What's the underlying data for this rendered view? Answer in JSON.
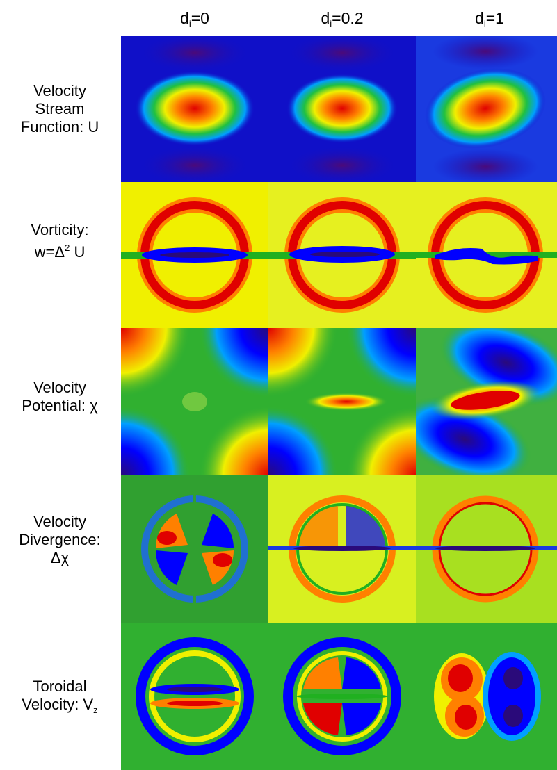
{
  "columns": [
    {
      "prefix": "d",
      "sub": "i",
      "suffix": "=0"
    },
    {
      "prefix": "d",
      "sub": "i",
      "suffix": "=0.2"
    },
    {
      "prefix": "d",
      "sub": "i",
      "suffix": "=1"
    }
  ],
  "rows": [
    {
      "lines": [
        "Velocity",
        "Stream",
        "Function: U"
      ]
    },
    {
      "line1": "Vorticity:",
      "l2a": "w=Δ",
      "l2sup": "2",
      "l2b": " U"
    },
    {
      "lines": [
        "Velocity",
        "Potential: χ"
      ]
    },
    {
      "lines": [
        "Velocity",
        "Divergence:",
        "Δχ"
      ]
    },
    {
      "line1": "Toroidal",
      "l2a": "Velocity: V",
      "l2sub": "z"
    }
  ],
  "colormap": [
    "#2a0a7a",
    "#0000ff",
    "#00a0ff",
    "#20b020",
    "#f0f000",
    "#ff8000",
    "#e00000"
  ],
  "panel_backgrounds": [
    [
      "#1010c8",
      "#1010c8",
      "#1a3ae0"
    ],
    [
      "#f0f000",
      "#e6f020",
      "#e6f020"
    ],
    [
      "#30b030",
      "#30b030",
      "#40b040"
    ],
    [
      "#30a030",
      "#d8f020",
      "#a8e020"
    ],
    [
      "#30b030",
      "#30b030",
      "#30b030"
    ]
  ]
}
